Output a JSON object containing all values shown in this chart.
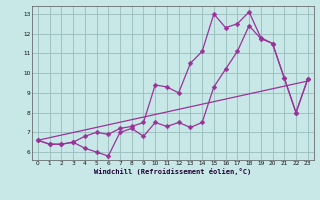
{
  "xlabel": "Windchill (Refroidissement éolien,°C)",
  "bg_color": "#c8e8e8",
  "line_color": "#993399",
  "grid_color": "#99bbbb",
  "xlim": [
    -0.5,
    23.5
  ],
  "ylim": [
    5.6,
    13.4
  ],
  "xticks": [
    0,
    1,
    2,
    3,
    4,
    5,
    6,
    7,
    8,
    9,
    10,
    11,
    12,
    13,
    14,
    15,
    16,
    17,
    18,
    19,
    20,
    21,
    22,
    23
  ],
  "yticks": [
    6,
    7,
    8,
    9,
    10,
    11,
    12,
    13
  ],
  "line1_x": [
    0,
    1,
    2,
    3,
    4,
    5,
    6,
    7,
    8,
    9,
    10,
    11,
    12,
    13,
    14,
    15,
    16,
    17,
    18,
    19,
    20,
    21,
    22,
    23
  ],
  "line1_y": [
    6.6,
    6.4,
    6.4,
    6.5,
    6.2,
    6.0,
    5.8,
    7.0,
    7.2,
    6.8,
    7.5,
    7.3,
    7.5,
    7.25,
    7.5,
    9.3,
    10.2,
    11.1,
    12.4,
    11.75,
    11.5,
    9.75,
    8.0,
    9.7
  ],
  "line2_x": [
    0,
    1,
    2,
    3,
    4,
    5,
    6,
    7,
    8,
    9,
    10,
    11,
    12,
    13,
    14,
    15,
    16,
    17,
    18,
    19,
    20,
    21,
    22,
    23
  ],
  "line2_y": [
    6.6,
    6.4,
    6.4,
    6.5,
    6.8,
    7.0,
    6.9,
    7.2,
    7.3,
    7.5,
    9.4,
    9.3,
    9.0,
    10.5,
    11.1,
    13.0,
    12.3,
    12.5,
    13.1,
    11.8,
    11.5,
    9.75,
    8.0,
    9.7
  ],
  "line3_x": [
    0,
    23
  ],
  "line3_y": [
    6.6,
    9.6
  ],
  "markersize": 2.5,
  "linewidth": 0.9
}
